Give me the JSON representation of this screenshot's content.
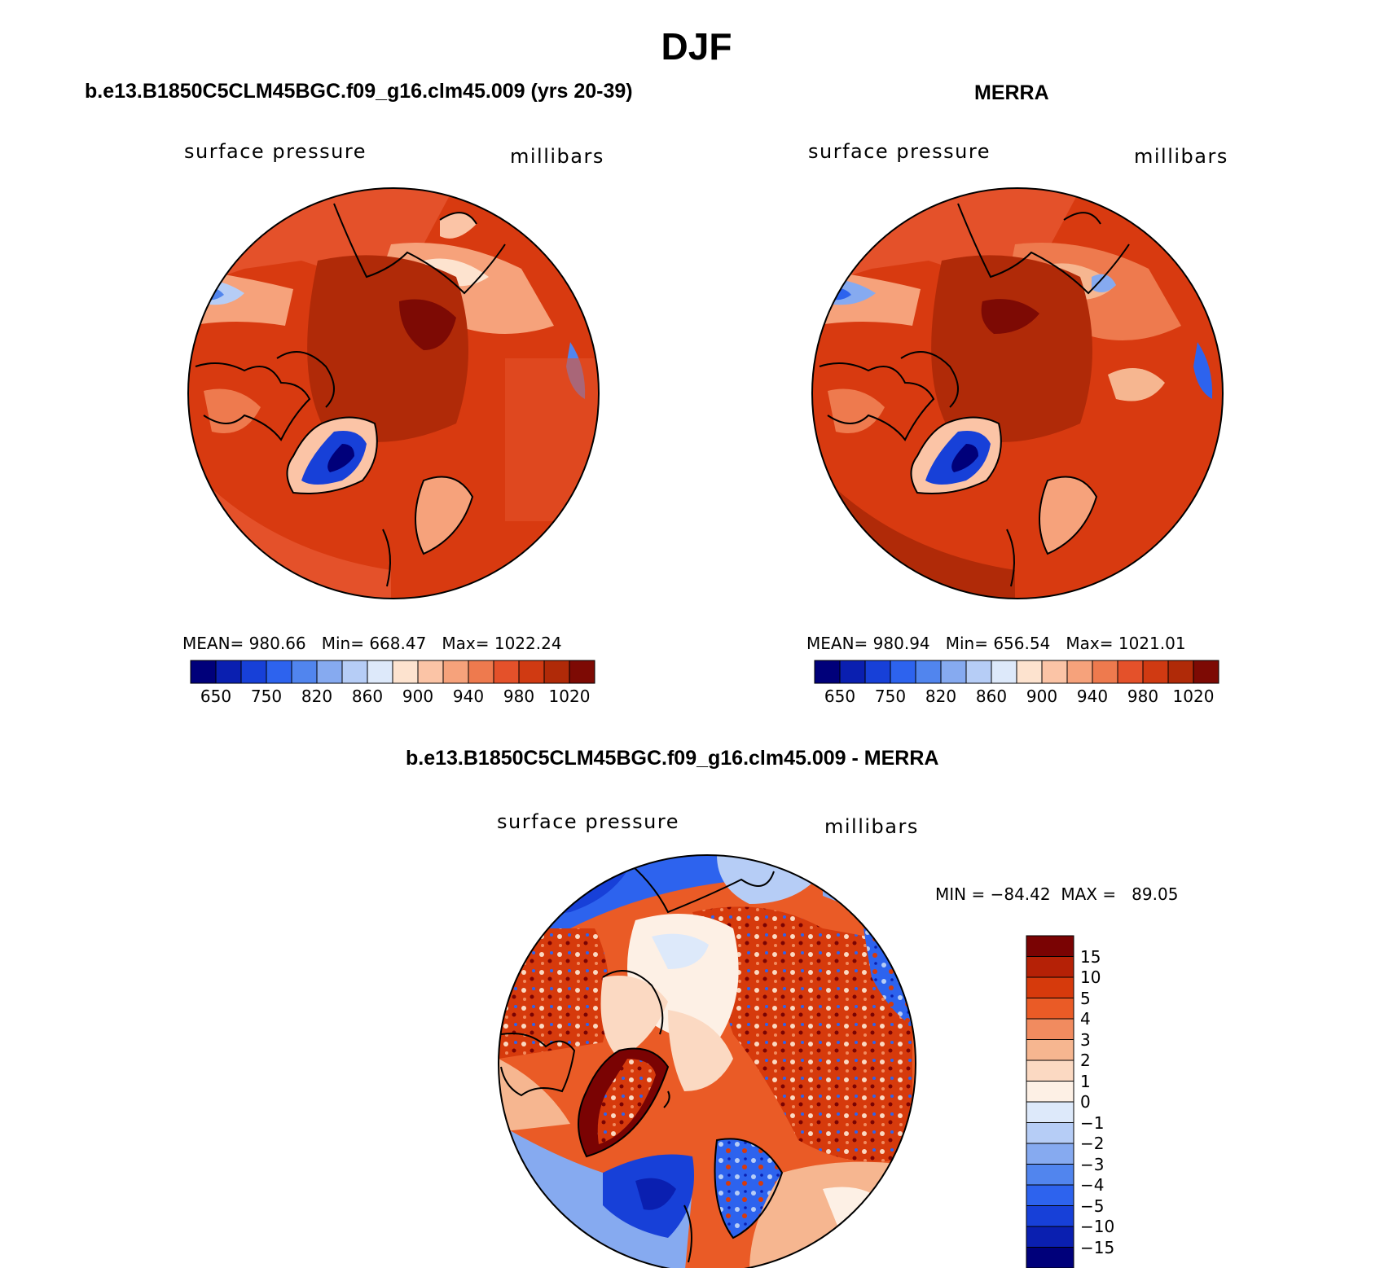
{
  "figure": {
    "title": "DJF"
  },
  "panels": {
    "model": {
      "title": "b.e13.B1850C5CLM45BGC.f09_g16.clm45.009 (yrs 20-39)",
      "left_label": "surface pressure",
      "right_label": "millibars",
      "stats": {
        "mean_label": "MEAN=",
        "mean": "980.66",
        "min_label": "Min=",
        "min": "668.47",
        "max_label": "Max=",
        "max": "1022.24"
      }
    },
    "obs": {
      "title": "MERRA",
      "left_label": "surface pressure",
      "right_label": "millibars",
      "stats": {
        "mean_label": "MEAN=",
        "mean": "980.94",
        "min_label": "Min=",
        "min": "656.54",
        "max_label": "Max=",
        "max": "1021.01"
      }
    },
    "diff": {
      "title": "b.e13.B1850C5CLM45BGC.f09_g16.clm45.009 - MERRA",
      "left_label": "surface pressure",
      "right_label": "millibars",
      "stats": {
        "min_label": "MIN =",
        "min": "−84.42",
        "max_label": "MAX =",
        "max": "89.05"
      }
    }
  },
  "colorbars": {
    "absolute": {
      "colors": [
        "#00007a",
        "#0a1fb0",
        "#1740d8",
        "#2d63ee",
        "#5185ee",
        "#86aaf0",
        "#b6cdf6",
        "#dde9fa",
        "#fde3cf",
        "#fbc4a6",
        "#f6a27b",
        "#ee7a4e",
        "#e4512a",
        "#d03a12",
        "#b02a08",
        "#7d0a04"
      ],
      "tick_labels": [
        "650",
        "750",
        "820",
        "860",
        "900",
        "940",
        "980",
        "1020"
      ]
    },
    "difference": {
      "colors": [
        "#7a0303",
        "#b52106",
        "#d63a0c",
        "#ea5b26",
        "#f18b5f",
        "#f6b690",
        "#fbd9c2",
        "#fdf0e5",
        "#dde9fa",
        "#b6cdf6",
        "#86aaf0",
        "#5185ee",
        "#2d63ee",
        "#1740d8",
        "#0a1fb0",
        "#00007a"
      ],
      "tick_labels": [
        "15",
        "10",
        "5",
        "4",
        "3",
        "2",
        "1",
        "0",
        "−1",
        "−2",
        "−3",
        "−4",
        "−5",
        "−10",
        "−15"
      ]
    }
  }
}
